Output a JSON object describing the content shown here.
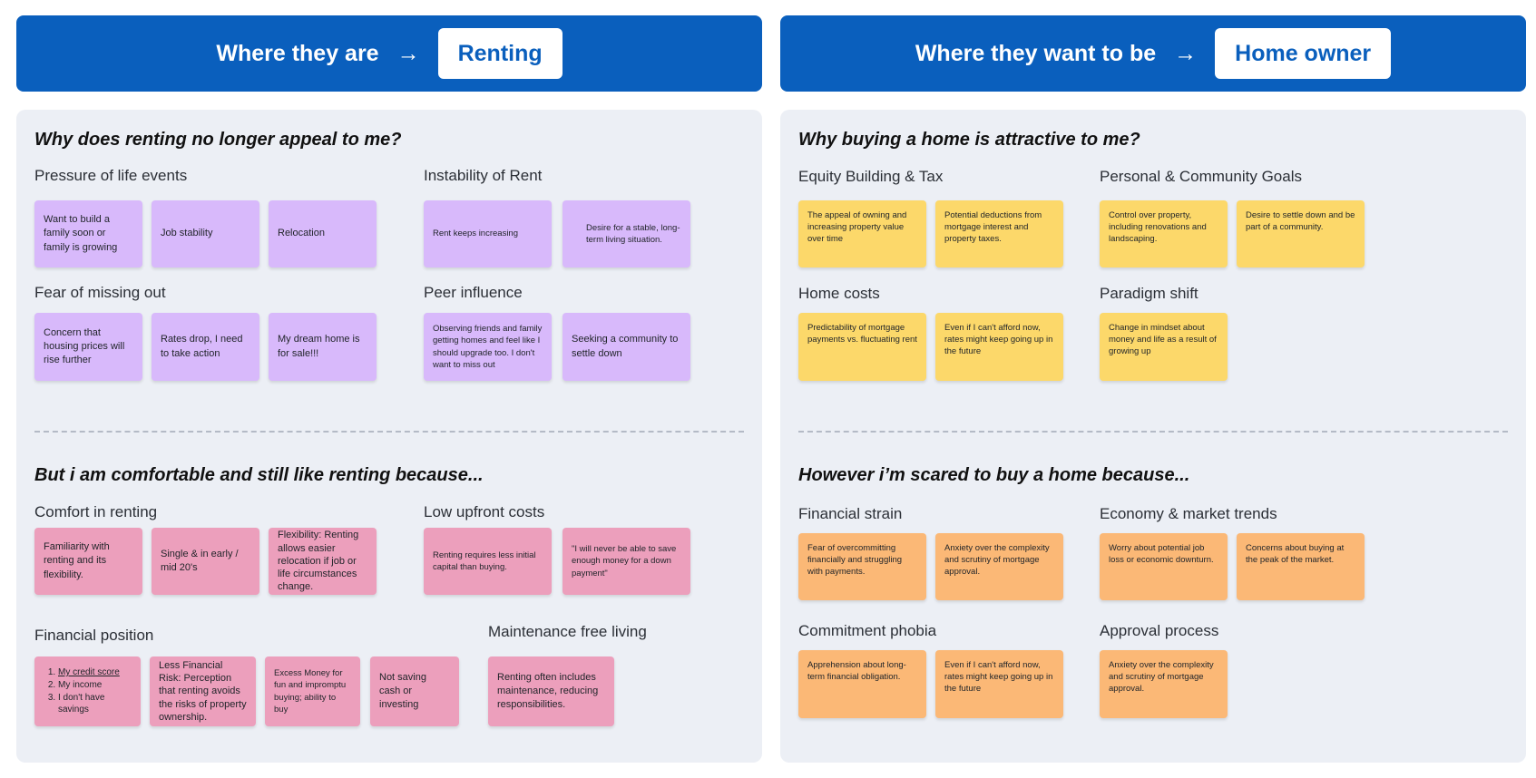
{
  "left_header": {
    "text": "Where they are",
    "arrow": "→",
    "state": "Renting"
  },
  "right_header": {
    "text": "Where they want to be",
    "arrow": "→",
    "state": "Home owner"
  },
  "left_panel": {
    "top_question": "Why does renting no longer appeal to me?",
    "bottom_question": "But i am comfortable and still like renting because...",
    "groups": {
      "pressure": {
        "title": "Pressure of life events",
        "notes": [
          "Want to build a family soon or family is growing",
          "Job stability",
          "Relocation"
        ]
      },
      "instability": {
        "title": "Instability of Rent",
        "notes": [
          "Rent keeps increasing",
          "Desire for a stable, long-term living situation."
        ]
      },
      "fomo": {
        "title": "Fear of missing out",
        "notes": [
          "Concern that housing prices will rise further",
          "Rates drop, I need to take action",
          "My dream home is for sale!!!"
        ]
      },
      "peer": {
        "title": "Peer influence",
        "notes": [
          "Observing friends and family getting homes and feel like I should upgrade too. I don't want to miss out",
          "Seeking a community to settle down"
        ]
      },
      "comfort": {
        "title": "Comfort in renting",
        "notes": [
          "Familiarity with renting and its flexibility.",
          "Single & in early / mid 20's",
          "Flexibility: Renting allows easier relocation if job or life circumstances change."
        ]
      },
      "upfront": {
        "title": "Low upfront costs",
        "notes": [
          "Renting requires less initial capital than buying.",
          "\"I will never be able to save enough money for a down payment\""
        ]
      },
      "position": {
        "title": "Financial position",
        "list": [
          "My credit score",
          "My income",
          "I don't have savings"
        ],
        "notes": [
          "Less Financial Risk: Perception that renting avoids the risks of property ownership.",
          "Excess Money for fun and impromptu buying; ability to buy",
          "Not saving cash or investing"
        ]
      },
      "maintenance": {
        "title": "Maintenance free living",
        "notes": [
          "Renting often includes maintenance, reducing responsibilities."
        ]
      }
    }
  },
  "right_panel": {
    "top_question": "Why buying a home is attractive to me?",
    "bottom_question": "However i’m scared to buy a home because...",
    "groups": {
      "equity": {
        "title": "Equity Building & Tax",
        "notes": [
          "The appeal of owning and increasing property value over time",
          "Potential deductions from mortgage interest and property taxes."
        ]
      },
      "goals": {
        "title": "Personal & Community Goals",
        "notes": [
          "Control over property, including renovations and landscaping.",
          "Desire to settle down and be part of a community."
        ]
      },
      "homecosts": {
        "title": "Home costs",
        "notes": [
          "Predictability of mortgage payments vs. fluctuating rent",
          "Even if I can't afford now, rates might keep going up in the future"
        ]
      },
      "paradigm": {
        "title": "Paradigm shift",
        "notes": [
          "Change in mindset about money and life as a result of growing up"
        ]
      },
      "strain": {
        "title": "Financial strain",
        "notes": [
          "Fear of overcommitting financially and struggling with payments.",
          "Anxiety over the complexity and scrutiny of mortgage approval."
        ]
      },
      "economy": {
        "title": "Economy & market trends",
        "notes": [
          "Worry about potential job loss or economic downturn.",
          "Concerns about buying at the peak of the market."
        ]
      },
      "phobia": {
        "title": "Commitment phobia",
        "notes": [
          "Apprehension about long-term financial obligation.",
          "Even if I can't afford now, rates might keep going up in the future"
        ]
      },
      "approval": {
        "title": "Approval process",
        "notes": [
          "Anxiety over the complexity and scrutiny of mortgage approval."
        ]
      }
    }
  }
}
